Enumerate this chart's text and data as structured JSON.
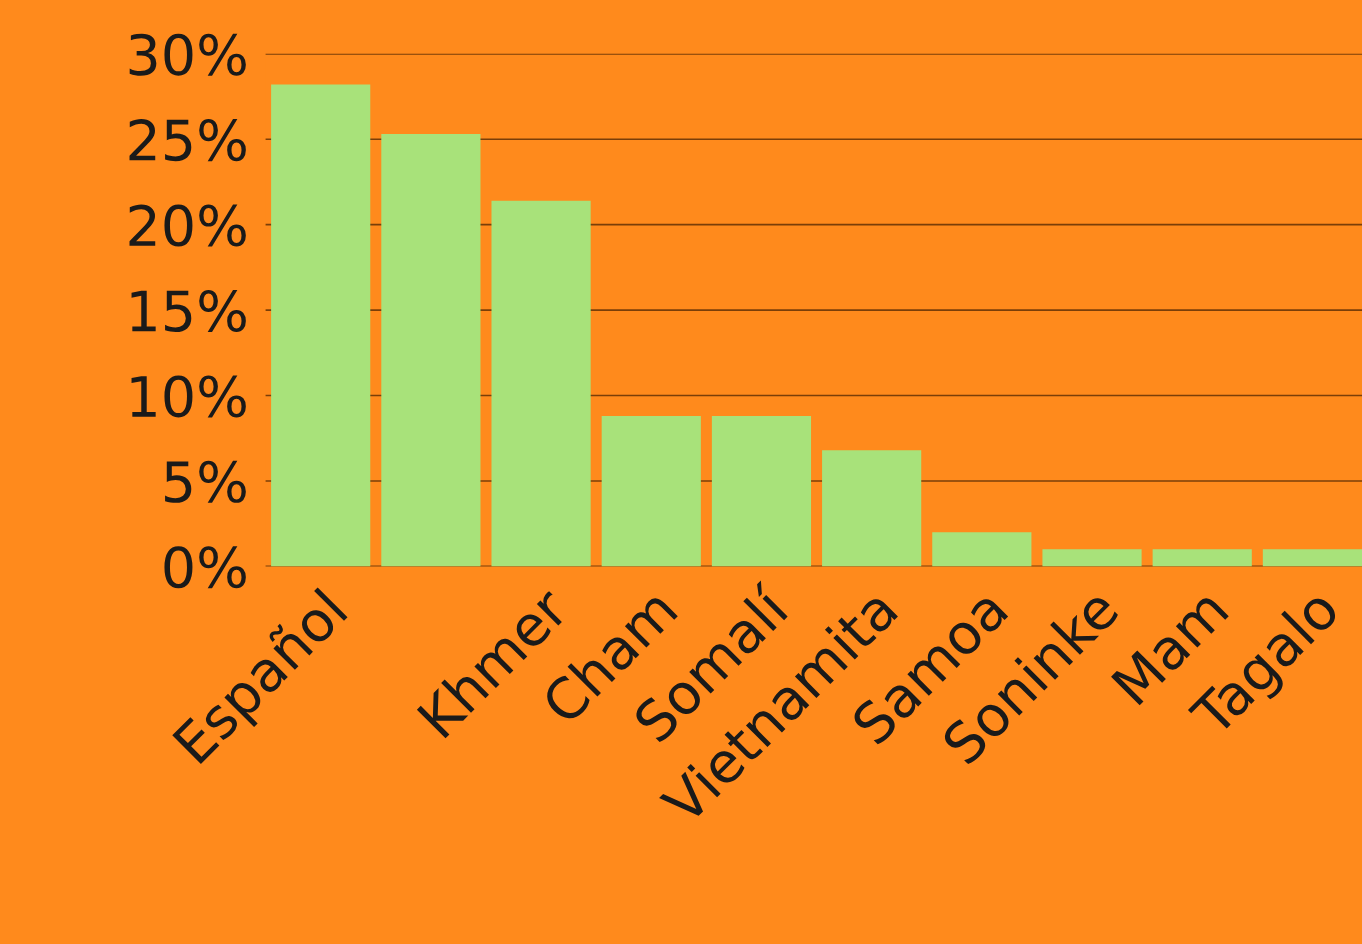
{
  "chart_data": {
    "type": "bar",
    "categories": [
      "Español",
      null,
      "Khmer",
      "Cham",
      "Somalí",
      "Vietnamita",
      "Samoa",
      "Soninke",
      "Mam",
      "Tagalo"
    ],
    "values": [
      28.2,
      25.3,
      21.4,
      8.8,
      8.8,
      6.8,
      2.0,
      1.0,
      1.0,
      1.0
    ],
    "color": "#a8e27a",
    "ylim": [
      0,
      30
    ],
    "yticks": [
      {
        "value": 0,
        "label": "0%"
      },
      {
        "value": 5,
        "label": "5%"
      },
      {
        "value": 10,
        "label": "10%"
      },
      {
        "value": 15,
        "label": "15%"
      },
      {
        "value": 20,
        "label": "20%"
      },
      {
        "value": 25,
        "label": "25%"
      },
      {
        "value": 30,
        "label": "30%"
      }
    ],
    "grid": "y"
  }
}
